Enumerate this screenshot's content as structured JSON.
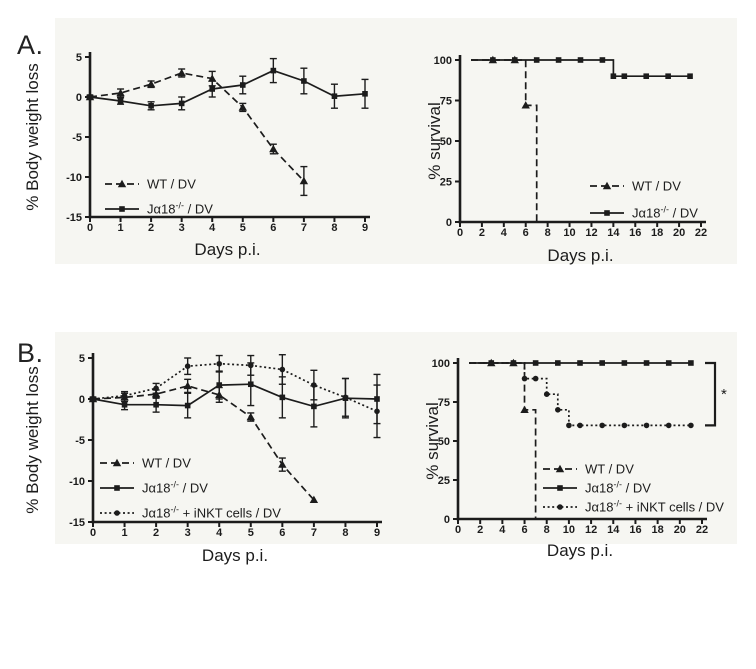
{
  "page": {
    "panel_a_label": "A.",
    "panel_b_label": "B."
  },
  "colors": {
    "ink": "#1c1c1c",
    "panel_bg": "#f6f6f2",
    "page_bg": "#ffffff"
  },
  "chart_data": [
    {
      "id": "panel-a-weight-loss",
      "type": "line",
      "title": "",
      "xlabel": "Days p.i.",
      "ylabel": "% Body weight loss",
      "xlim": [
        0,
        9
      ],
      "ylim": [
        -15,
        5
      ],
      "xticks": [
        0,
        1,
        2,
        3,
        4,
        5,
        6,
        7,
        8,
        9
      ],
      "yticks": [
        5,
        0,
        -5,
        -10,
        -15
      ],
      "grid": false,
      "legend_position": "inside-lower-left",
      "series": [
        {
          "name": "WT / DV",
          "line": "dashed",
          "marker": "triangle",
          "x": [
            0,
            1,
            2,
            3,
            4,
            5,
            6,
            7
          ],
          "y": [
            0,
            0.5,
            1.6,
            3.0,
            2.3,
            -1.3,
            -6.5,
            -10.5
          ],
          "err": [
            0.2,
            0.5,
            0.4,
            0.5,
            0.9,
            0.5,
            0.6,
            1.8
          ]
        },
        {
          "name": "Jα18^{-/-} / DV",
          "line": "solid",
          "marker": "square",
          "x": [
            0,
            1,
            2,
            3,
            4,
            5,
            6,
            7,
            8,
            9
          ],
          "y": [
            0,
            -0.5,
            -1.1,
            -0.8,
            1.0,
            1.5,
            3.3,
            2.0,
            0.1,
            0.4
          ],
          "err": [
            0.2,
            0.4,
            0.5,
            0.8,
            1.0,
            1.1,
            1.5,
            1.6,
            1.5,
            1.8
          ]
        }
      ]
    },
    {
      "id": "panel-a-survival",
      "type": "step",
      "title": "",
      "xlabel": "Days p.i.",
      "ylabel": "% survival",
      "xlim": [
        0,
        22
      ],
      "ylim": [
        0,
        100
      ],
      "xticks": [
        0,
        2,
        4,
        6,
        8,
        10,
        12,
        14,
        16,
        18,
        20,
        22
      ],
      "yticks": [
        100,
        75,
        50,
        25,
        0
      ],
      "grid": false,
      "legend_position": "inside-lower-right",
      "series": [
        {
          "name": "WT / DV",
          "line": "dashed",
          "marker": "triangle",
          "steps": [
            [
              1,
              100
            ],
            [
              6,
              100
            ],
            [
              6,
              72
            ],
            [
              7,
              72
            ],
            [
              7,
              0
            ]
          ],
          "markers": [
            [
              3,
              100
            ],
            [
              5,
              100
            ],
            [
              6,
              72
            ]
          ]
        },
        {
          "name": "Jα18^{-/-} / DV",
          "line": "solid",
          "marker": "square",
          "steps": [
            [
              1,
              100
            ],
            [
              14,
              100
            ],
            [
              14,
              90
            ],
            [
              21,
              90
            ]
          ],
          "markers": [
            [
              3,
              100
            ],
            [
              5,
              100
            ],
            [
              7,
              100
            ],
            [
              9,
              100
            ],
            [
              11,
              100
            ],
            [
              13,
              100
            ],
            [
              14,
              90
            ],
            [
              15,
              90
            ],
            [
              17,
              90
            ],
            [
              19,
              90
            ],
            [
              21,
              90
            ]
          ]
        }
      ]
    },
    {
      "id": "panel-b-weight-loss",
      "type": "line",
      "title": "",
      "xlabel": "Days p.i.",
      "ylabel": "% Body weight loss",
      "xlim": [
        0,
        9
      ],
      "ylim": [
        -15,
        5
      ],
      "xticks": [
        0,
        1,
        2,
        3,
        4,
        5,
        6,
        7,
        8,
        9
      ],
      "yticks": [
        5,
        0,
        -5,
        -10,
        -15
      ],
      "grid": false,
      "legend_position": "inside-lower-left",
      "series": [
        {
          "name": "WT / DV",
          "line": "dashed",
          "marker": "triangle",
          "x": [
            0,
            1,
            2,
            3,
            4,
            5,
            6,
            7
          ],
          "y": [
            0,
            0.2,
            0.6,
            1.6,
            0.5,
            -2.2,
            -8.0,
            -12.3
          ],
          "err": [
            0.2,
            0.5,
            0.5,
            0.8,
            0.9,
            0.5,
            0.8,
            0
          ]
        },
        {
          "name": "Jα18^{-/-} / DV",
          "line": "solid",
          "marker": "square",
          "x": [
            0,
            1,
            2,
            3,
            4,
            5,
            6,
            7,
            8,
            9
          ],
          "y": [
            0,
            -0.7,
            -0.7,
            -0.8,
            1.7,
            1.8,
            0.2,
            -0.9,
            0.1,
            0.0
          ],
          "err": [
            0.2,
            0.6,
            0.9,
            1.5,
            1.7,
            2.6,
            2.5,
            2.5,
            2.4,
            3.0
          ]
        },
        {
          "name": "Jα18^{-/-} + iNKT cells / DV",
          "line": "dotted",
          "marker": "circle",
          "x": [
            0,
            1,
            2,
            3,
            4,
            5,
            6,
            7,
            8,
            9
          ],
          "y": [
            0,
            0.4,
            1.3,
            4.0,
            4.3,
            4.1,
            3.6,
            1.7,
            0.2,
            -1.5
          ],
          "err": [
            0.2,
            0.5,
            0.6,
            1.0,
            1.0,
            1.2,
            1.8,
            1.8,
            2.3,
            3.2
          ]
        }
      ]
    },
    {
      "id": "panel-b-survival",
      "type": "step",
      "title": "",
      "xlabel": "Days p.i.",
      "ylabel": "% survival",
      "xlim": [
        0,
        22
      ],
      "ylim": [
        0,
        100
      ],
      "xticks": [
        0,
        2,
        4,
        6,
        8,
        10,
        12,
        14,
        16,
        18,
        20,
        22
      ],
      "yticks": [
        100,
        75,
        50,
        25,
        0
      ],
      "grid": false,
      "legend_position": "inside-lower-right",
      "annotation": {
        "type": "bracket",
        "y_top": 100,
        "y_bottom": 60,
        "label": "*"
      },
      "series": [
        {
          "name": "WT / DV",
          "line": "dashed",
          "marker": "triangle",
          "steps": [
            [
              1,
              100
            ],
            [
              6,
              100
            ],
            [
              6,
              70
            ],
            [
              7,
              70
            ],
            [
              7,
              0
            ]
          ],
          "markers": [
            [
              3,
              100
            ],
            [
              5,
              100
            ],
            [
              6,
              70
            ]
          ]
        },
        {
          "name": "Jα18^{-/-} / DV",
          "line": "solid",
          "marker": "square",
          "steps": [
            [
              1,
              100
            ],
            [
              21,
              100
            ]
          ],
          "markers": [
            [
              3,
              100
            ],
            [
              5,
              100
            ],
            [
              7,
              100
            ],
            [
              9,
              100
            ],
            [
              11,
              100
            ],
            [
              13,
              100
            ],
            [
              15,
              100
            ],
            [
              17,
              100
            ],
            [
              19,
              100
            ],
            [
              21,
              100
            ]
          ]
        },
        {
          "name": "Jα18^{-/-} + iNKT cells / DV",
          "line": "dotted",
          "marker": "circle",
          "steps": [
            [
              1,
              100
            ],
            [
              6,
              100
            ],
            [
              6,
              90
            ],
            [
              8,
              90
            ],
            [
              8,
              80
            ],
            [
              9,
              80
            ],
            [
              9,
              70
            ],
            [
              10,
              70
            ],
            [
              10,
              60
            ],
            [
              21,
              60
            ]
          ],
          "markers": [
            [
              6,
              90
            ],
            [
              7,
              90
            ],
            [
              8,
              80
            ],
            [
              9,
              70
            ],
            [
              10,
              60
            ],
            [
              11,
              60
            ],
            [
              13,
              60
            ],
            [
              15,
              60
            ],
            [
              17,
              60
            ],
            [
              19,
              60
            ],
            [
              21,
              60
            ]
          ]
        }
      ]
    }
  ]
}
